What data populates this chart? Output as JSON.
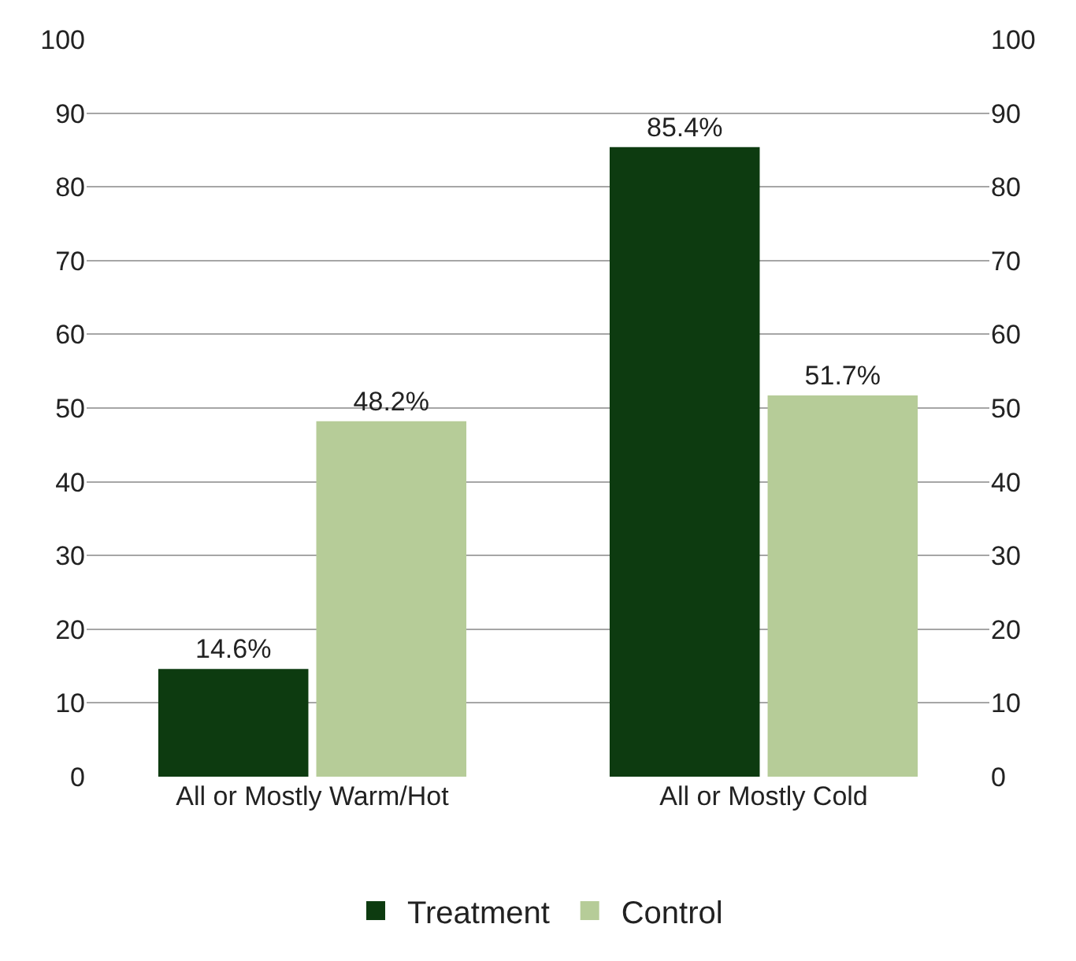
{
  "chart_data": {
    "type": "bar",
    "categories": [
      "All or Mostly Warm/Hot",
      "All or Mostly Cold"
    ],
    "series": [
      {
        "name": "Treatment",
        "color": "#0d3b10",
        "values": [
          14.6,
          85.4
        ],
        "value_labels": [
          "14.6%",
          "85.4%"
        ]
      },
      {
        "name": "Control",
        "color": "#b6cc98",
        "values": [
          48.2,
          51.7
        ],
        "value_labels": [
          "48.2%",
          "51.7%"
        ]
      }
    ],
    "ylim": [
      0,
      100
    ],
    "yticks": [
      0,
      10,
      20,
      30,
      40,
      50,
      60,
      70,
      80,
      90,
      100
    ],
    "y2lim": [
      0,
      100
    ],
    "y2ticks": [
      0,
      10,
      20,
      30,
      40,
      50,
      60,
      70,
      80,
      90,
      100
    ],
    "grid": "y",
    "legend": "bottom"
  }
}
